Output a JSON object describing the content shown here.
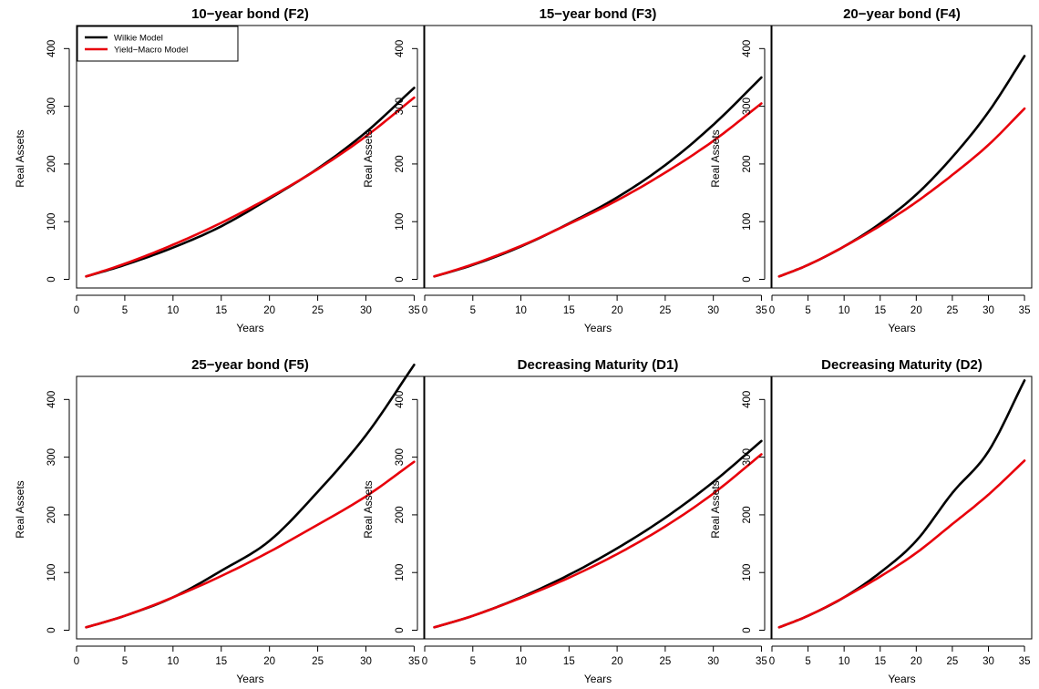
{
  "figure": {
    "legend": {
      "placement": "top-left (first panel)",
      "entries": [
        {
          "name": "Wilkie Model",
          "color": "#000000"
        },
        {
          "name": "Yield−Macro Model",
          "color": "#e8000b"
        }
      ]
    }
  },
  "chart_data": [
    {
      "type": "line",
      "title": "10−year bond (F2)",
      "xlabel": "Years",
      "ylabel": "Real Assets",
      "xlim": [
        0,
        36
      ],
      "ylim": [
        -15,
        440
      ],
      "xticks": [
        "0",
        "5",
        "10",
        "15",
        "20",
        "25",
        "30",
        "35"
      ],
      "yticks": [
        "0",
        "100",
        "200",
        "300",
        "400"
      ],
      "grid": false,
      "legend": [
        "Wilkie Model",
        "Yield−Macro Model"
      ],
      "x": [
        1,
        5,
        10,
        15,
        20,
        25,
        30,
        35
      ],
      "series": [
        {
          "name": "Wilkie Model",
          "color": "#000000",
          "values": [
            5,
            25,
            55,
            92,
            140,
            192,
            255,
            332
          ]
        },
        {
          "name": "Yield−Macro Model",
          "color": "#e8000b",
          "values": [
            5,
            27,
            60,
            98,
            142,
            191,
            248,
            315
          ]
        }
      ]
    },
    {
      "type": "line",
      "title": "15−year bond (F3)",
      "xlabel": "Years",
      "ylabel": "Real Assets",
      "xlim": [
        0,
        36
      ],
      "ylim": [
        -15,
        440
      ],
      "xticks": [
        "0",
        "5",
        "10",
        "15",
        "20",
        "25",
        "30",
        "35"
      ],
      "yticks": [
        "0",
        "100",
        "200",
        "300",
        "400"
      ],
      "grid": false,
      "x": [
        1,
        5,
        10,
        15,
        20,
        25,
        30,
        35
      ],
      "series": [
        {
          "name": "Wilkie Model",
          "color": "#000000",
          "values": [
            5,
            25,
            57,
            97,
            142,
            198,
            268,
            350
          ]
        },
        {
          "name": "Yield−Macro Model",
          "color": "#e8000b",
          "values": [
            5,
            26,
            58,
            96,
            137,
            185,
            240,
            305
          ]
        }
      ]
    },
    {
      "type": "line",
      "title": "20−year bond (F4)",
      "xlabel": "Years",
      "ylabel": "Real Assets",
      "xlim": [
        0,
        36
      ],
      "ylim": [
        -15,
        440
      ],
      "xticks": [
        "0",
        "5",
        "10",
        "15",
        "20",
        "25",
        "30",
        "35"
      ],
      "yticks": [
        "0",
        "100",
        "200",
        "300",
        "400"
      ],
      "grid": false,
      "x": [
        1,
        5,
        10,
        15,
        20,
        25,
        30,
        35
      ],
      "series": [
        {
          "name": "Wilkie Model",
          "color": "#000000",
          "values": [
            5,
            25,
            57,
            97,
            147,
            212,
            290,
            387
          ]
        },
        {
          "name": "Yield−Macro Model",
          "color": "#e8000b",
          "values": [
            5,
            25,
            57,
            93,
            134,
            181,
            233,
            296
          ]
        }
      ]
    },
    {
      "type": "line",
      "title": "25−year bond (F5)",
      "xlabel": "Years",
      "ylabel": "Real Assets",
      "xlim": [
        0,
        36
      ],
      "ylim": [
        -15,
        440
      ],
      "xticks": [
        "0",
        "5",
        "10",
        "15",
        "20",
        "25",
        "30",
        "35"
      ],
      "yticks": [
        "0",
        "100",
        "200",
        "300",
        "400"
      ],
      "grid": false,
      "x": [
        1,
        5,
        10,
        15,
        20,
        25,
        30,
        35
      ],
      "series": [
        {
          "name": "Wilkie Model",
          "color": "#000000",
          "values": [
            5,
            25,
            57,
            103,
            155,
            240,
            338,
            460
          ]
        },
        {
          "name": "Yield−Macro Model",
          "color": "#e8000b",
          "values": [
            5,
            25,
            57,
            94,
            136,
            183,
            232,
            292
          ]
        }
      ]
    },
    {
      "type": "line",
      "title": "Decreasing Maturity (D1)",
      "xlabel": "Years",
      "ylabel": "Real Assets",
      "xlim": [
        0,
        36
      ],
      "ylim": [
        -15,
        440
      ],
      "xticks": [
        "0",
        "5",
        "10",
        "15",
        "20",
        "25",
        "30",
        "35"
      ],
      "yticks": [
        "0",
        "100",
        "200",
        "300",
        "400"
      ],
      "grid": false,
      "x": [
        1,
        5,
        10,
        15,
        20,
        25,
        30,
        35
      ],
      "series": [
        {
          "name": "Wilkie Model",
          "color": "#000000",
          "values": [
            5,
            25,
            57,
            96,
            142,
            195,
            257,
            328
          ]
        },
        {
          "name": "Yield−Macro Model",
          "color": "#e8000b",
          "values": [
            5,
            25,
            56,
            91,
            132,
            180,
            237,
            305
          ]
        }
      ]
    },
    {
      "type": "line",
      "title": "Decreasing Maturity (D2)",
      "xlabel": "Years",
      "ylabel": "Real Assets",
      "xlim": [
        0,
        36
      ],
      "ylim": [
        -15,
        440
      ],
      "xticks": [
        "0",
        "5",
        "10",
        "15",
        "20",
        "25",
        "30",
        "35"
      ],
      "yticks": [
        "0",
        "100",
        "200",
        "300",
        "400"
      ],
      "grid": false,
      "x": [
        1,
        5,
        10,
        15,
        20,
        25,
        30,
        35
      ],
      "series": [
        {
          "name": "Wilkie Model",
          "color": "#000000",
          "values": [
            5,
            25,
            57,
            100,
            155,
            238,
            310,
            433
          ]
        },
        {
          "name": "Yield−Macro Model",
          "color": "#e8000b",
          "values": [
            5,
            25,
            57,
            93,
            134,
            184,
            235,
            294
          ]
        }
      ]
    }
  ]
}
